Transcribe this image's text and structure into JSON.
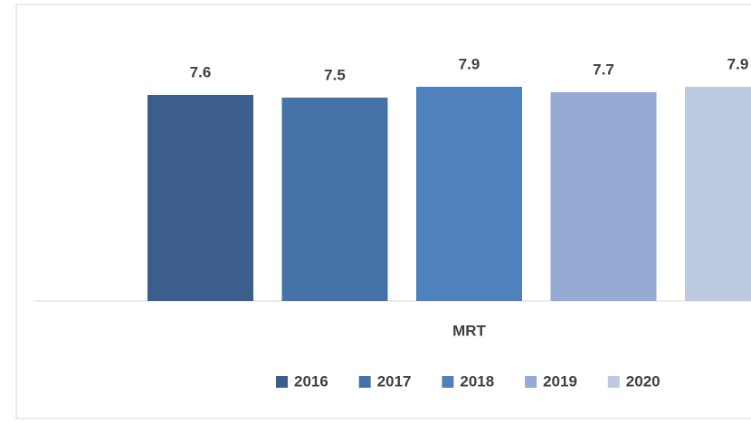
{
  "chart_data": {
    "type": "bar",
    "categories": [
      "MRT"
    ],
    "series": [
      {
        "name": "2016",
        "color": "#3b5e8c",
        "values": [
          7.6
        ]
      },
      {
        "name": "2017",
        "color": "#4572a7",
        "values": [
          7.5
        ]
      },
      {
        "name": "2018",
        "color": "#4f81bd",
        "values": [
          7.9
        ]
      },
      {
        "name": "2019",
        "color": "#95abd3",
        "values": [
          7.7
        ]
      },
      {
        "name": "2020",
        "color": "#bccae1",
        "values": [
          7.9
        ]
      }
    ],
    "ylim": [
      0,
      9
    ],
    "legend": "bottom"
  }
}
